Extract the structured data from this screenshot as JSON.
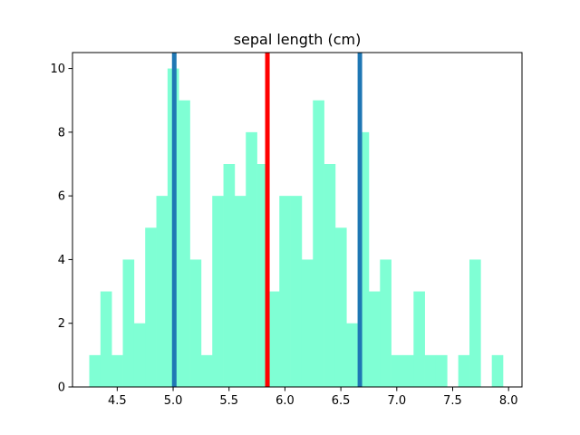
{
  "chart_data": {
    "type": "bar",
    "title": "sepal length (cm)",
    "xlabel": "",
    "ylabel": "",
    "xlim": [
      4.1,
      8.12
    ],
    "ylim": [
      0,
      10.5
    ],
    "bin_width": 0.1,
    "bar_color": "#7fffd4",
    "bins": [
      {
        "x": 4.3,
        "value": 1
      },
      {
        "x": 4.4,
        "value": 3
      },
      {
        "x": 4.5,
        "value": 1
      },
      {
        "x": 4.6,
        "value": 4
      },
      {
        "x": 4.7,
        "value": 2
      },
      {
        "x": 4.8,
        "value": 5
      },
      {
        "x": 4.9,
        "value": 6
      },
      {
        "x": 5.0,
        "value": 10
      },
      {
        "x": 5.1,
        "value": 9
      },
      {
        "x": 5.2,
        "value": 4
      },
      {
        "x": 5.3,
        "value": 1
      },
      {
        "x": 5.4,
        "value": 6
      },
      {
        "x": 5.5,
        "value": 7
      },
      {
        "x": 5.6,
        "value": 6
      },
      {
        "x": 5.7,
        "value": 8
      },
      {
        "x": 5.8,
        "value": 7
      },
      {
        "x": 5.9,
        "value": 3
      },
      {
        "x": 6.0,
        "value": 6
      },
      {
        "x": 6.1,
        "value": 6
      },
      {
        "x": 6.2,
        "value": 4
      },
      {
        "x": 6.3,
        "value": 9
      },
      {
        "x": 6.4,
        "value": 7
      },
      {
        "x": 6.5,
        "value": 5
      },
      {
        "x": 6.6,
        "value": 2
      },
      {
        "x": 6.7,
        "value": 8
      },
      {
        "x": 6.8,
        "value": 3
      },
      {
        "x": 6.9,
        "value": 4
      },
      {
        "x": 7.0,
        "value": 1
      },
      {
        "x": 7.1,
        "value": 1
      },
      {
        "x": 7.2,
        "value": 3
      },
      {
        "x": 7.3,
        "value": 1
      },
      {
        "x": 7.4,
        "value": 1
      },
      {
        "x": 7.5,
        "value": 0
      },
      {
        "x": 7.6,
        "value": 1
      },
      {
        "x": 7.7,
        "value": 4
      },
      {
        "x": 7.8,
        "value": 0
      },
      {
        "x": 7.9,
        "value": 1
      }
    ],
    "vlines": [
      {
        "x": 5.01,
        "color": "#1f77b4"
      },
      {
        "x": 5.843,
        "color": "#ff0000"
      },
      {
        "x": 6.67,
        "color": "#1f77b4"
      }
    ],
    "x_ticks": [
      {
        "value": 4.5,
        "label": "4.5"
      },
      {
        "value": 5.0,
        "label": "5.0"
      },
      {
        "value": 5.5,
        "label": "5.5"
      },
      {
        "value": 6.0,
        "label": "6.0"
      },
      {
        "value": 6.5,
        "label": "6.5"
      },
      {
        "value": 7.0,
        "label": "7.0"
      },
      {
        "value": 7.5,
        "label": "7.5"
      },
      {
        "value": 8.0,
        "label": "8.0"
      }
    ],
    "y_ticks": [
      {
        "value": 0,
        "label": "0"
      },
      {
        "value": 2,
        "label": "2"
      },
      {
        "value": 4,
        "label": "4"
      },
      {
        "value": 6,
        "label": "6"
      },
      {
        "value": 8,
        "label": "8"
      },
      {
        "value": 10,
        "label": "10"
      }
    ],
    "grid": false,
    "legend": "none"
  }
}
